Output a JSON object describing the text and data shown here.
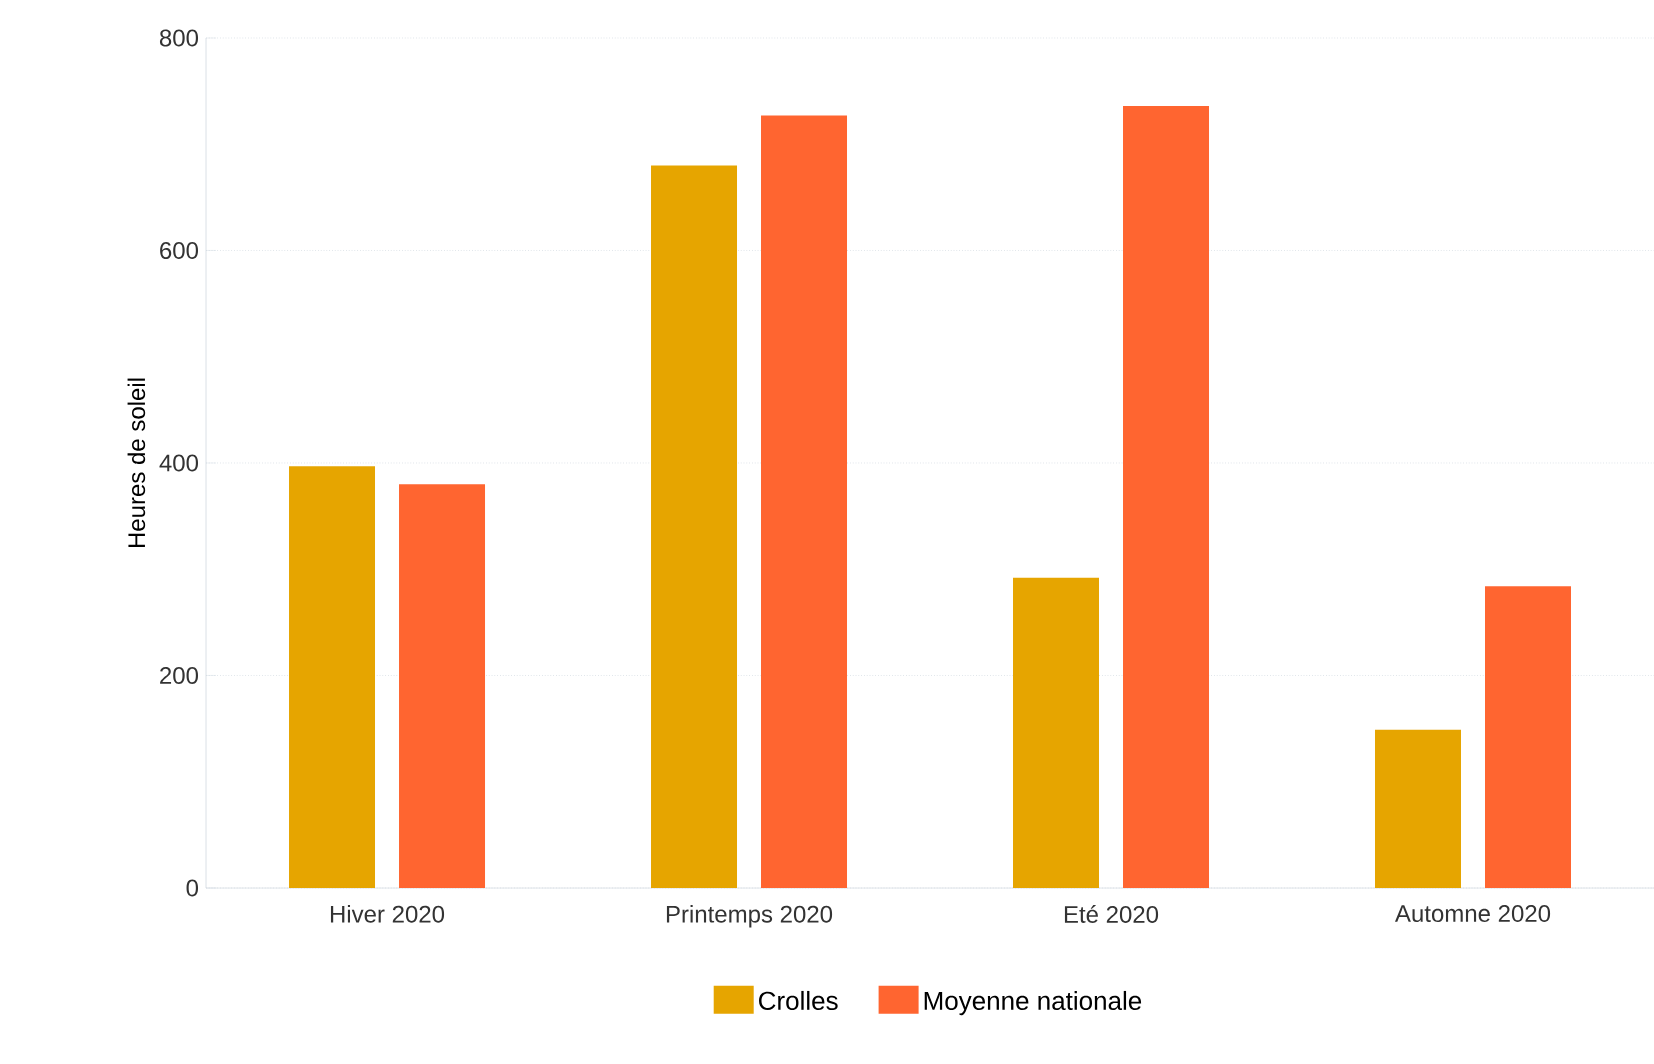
{
  "chart_data": {
    "type": "bar",
    "ylabel": "Heures de soleil",
    "categories": [
      "Hiver 2020",
      "Printemps 2020",
      "Eté 2020",
      "Automne 2020"
    ],
    "series": [
      {
        "name": "Crolles",
        "color": "#e6a500",
        "values": [
          397,
          680,
          292,
          149
        ]
      },
      {
        "name": "Moyenne nationale",
        "color": "#ff6530",
        "values": [
          380,
          727,
          736,
          284
        ]
      }
    ],
    "ylim": [
      0,
      800
    ],
    "yticks": [
      0,
      200,
      400,
      600,
      800
    ],
    "grid": "y",
    "legend": "bottom"
  }
}
